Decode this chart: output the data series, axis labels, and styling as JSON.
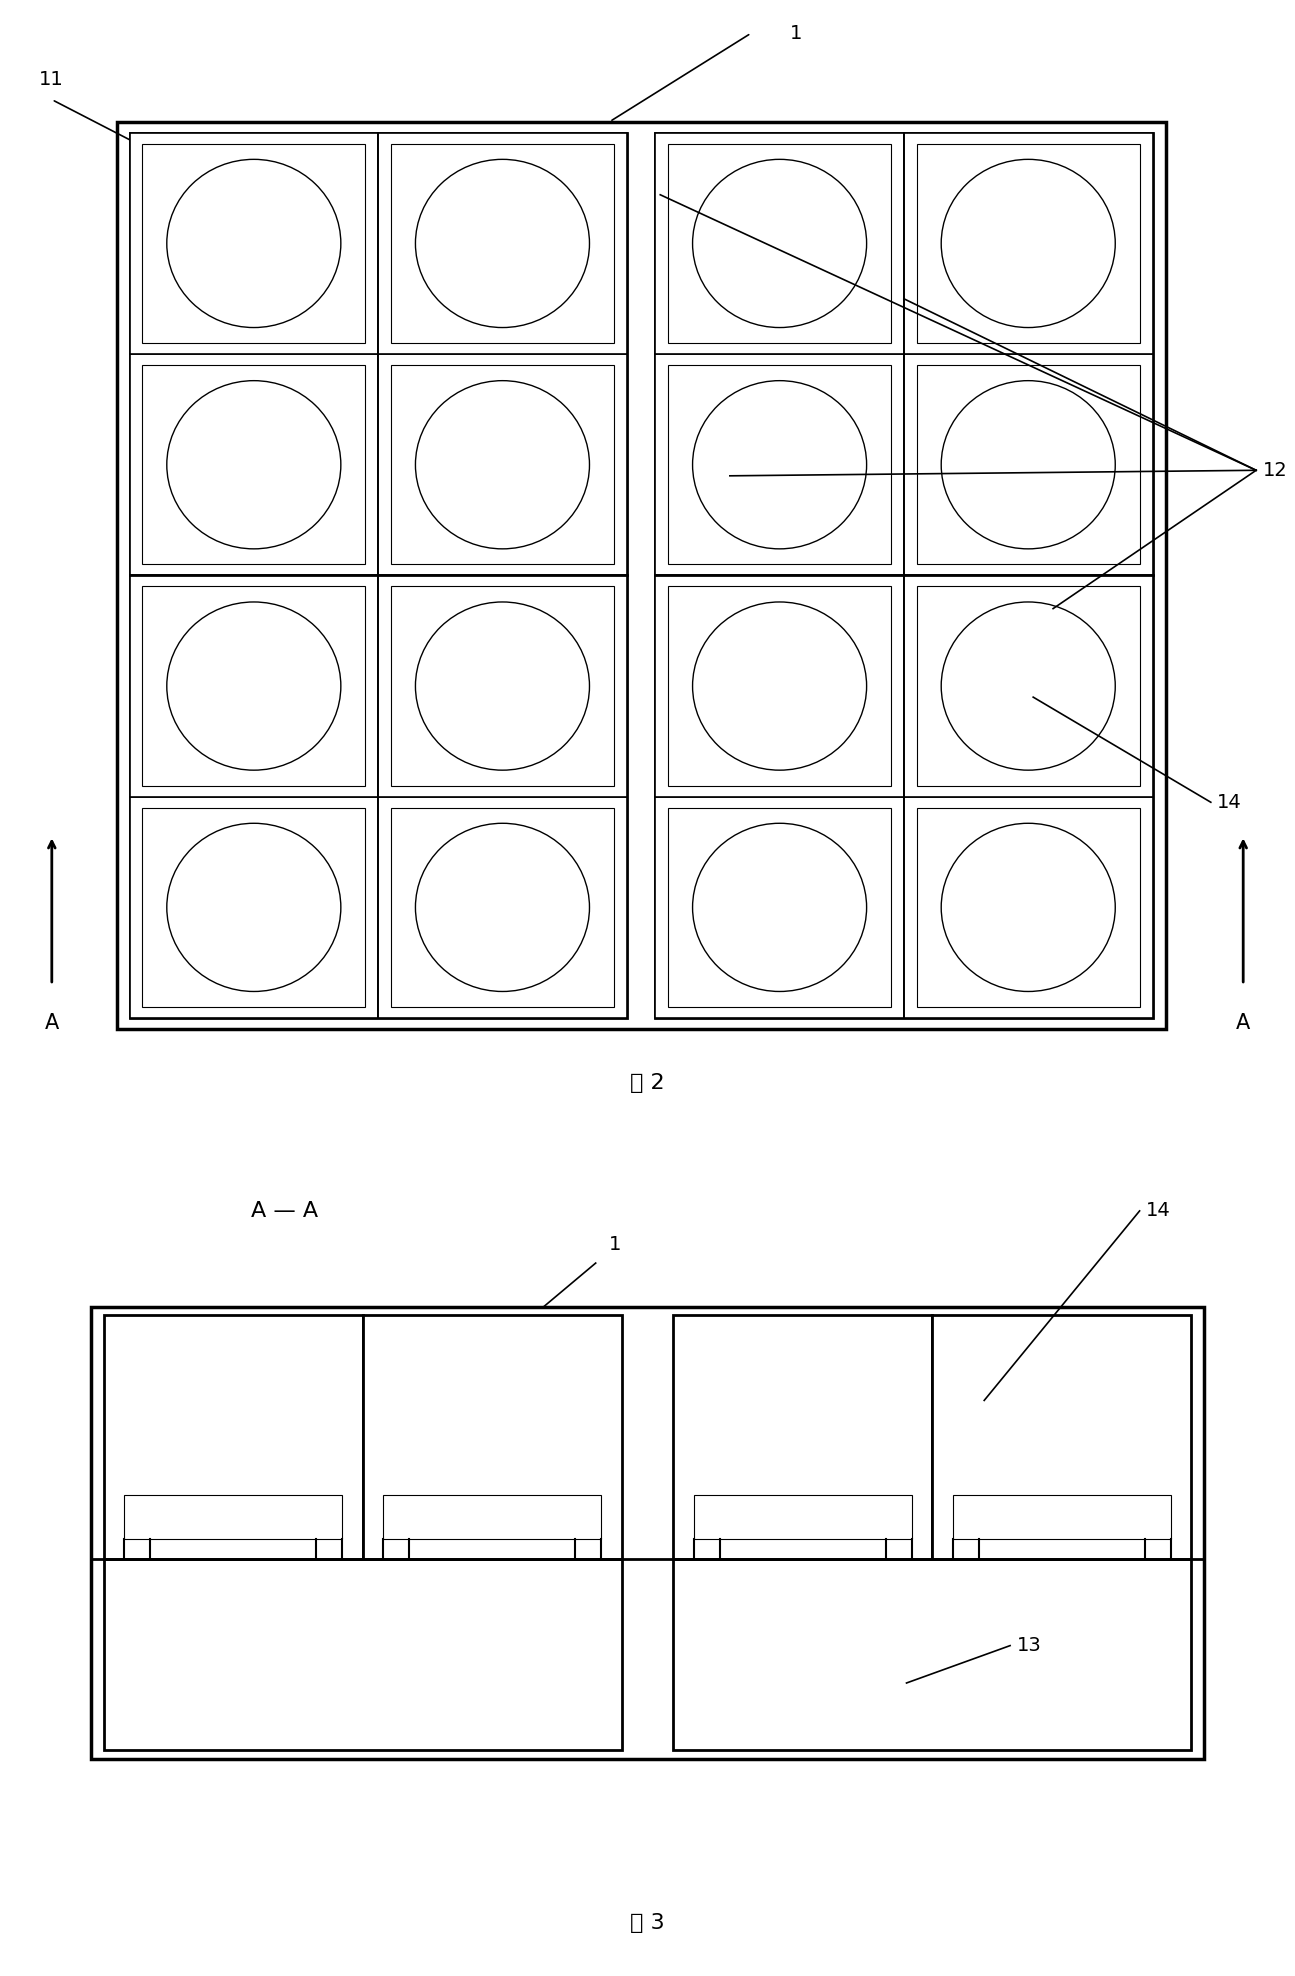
{
  "fig2_title": "图 2",
  "fig3_title": "图 3",
  "fig3_section_label": "A — A",
  "lw_outer": 2.5,
  "lw_group": 2.0,
  "lw_cell": 1.2,
  "lw_inner": 0.8,
  "lw_ellipse": 1.0,
  "lw_annot": 1.2,
  "lw_arrow": 2.0,
  "label_fontsize": 14,
  "title_fontsize": 16,
  "text_color": "#000000",
  "bg_color": "#ffffff"
}
